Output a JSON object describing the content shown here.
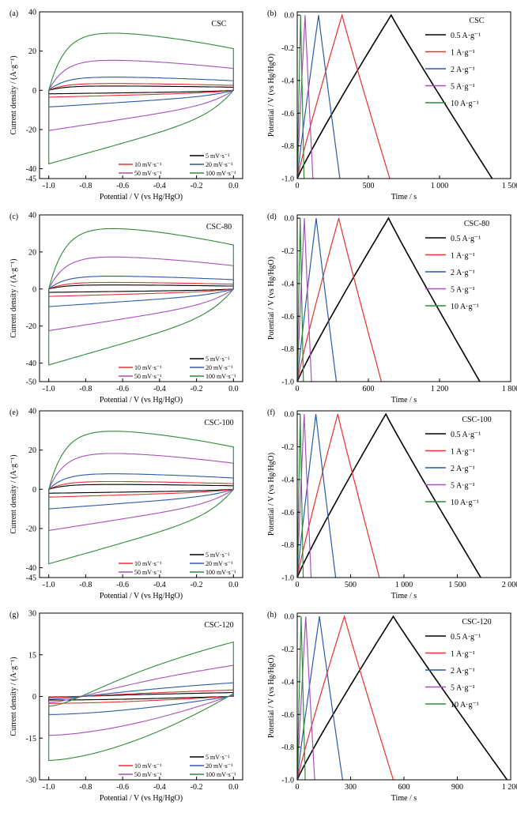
{
  "colors": {
    "black": "#000000",
    "red": "#e8312a",
    "blue": "#2a5aa8",
    "purple": "#a84fb8",
    "green": "#2e8b3a"
  },
  "common": {
    "cv_xlabel": "Potential / V (vs Hg/HgO)",
    "cv_ylabel": "Current density / (A·g⁻¹)",
    "gcd_xlabel": "Time / s",
    "gcd_ylabel": "Potential / V (vs Hg/HgO)",
    "cv_legend": [
      "5 mV·s⁻¹",
      "10 mV·s⁻¹",
      "20 mV·s⁻¹",
      "50 mV·s⁻¹",
      "100 mV·s⁻¹"
    ],
    "gcd_legend": [
      "0.5 A·g⁻¹",
      "1 A·g⁻¹",
      "2 A·g⁻¹",
      "5 A·g⁻¹",
      "10 A·g⁻¹"
    ]
  },
  "chart_data": [
    {
      "type": "line",
      "panel": "(a)",
      "title": "CSC",
      "xlabel": "Potential / V (vs Hg/HgO)",
      "ylabel": "Current density / (A·g⁻¹)",
      "xlim": [
        -1.05,
        0.05
      ],
      "ylim": [
        -45,
        40
      ],
      "xticks": [
        -1.0,
        -0.8,
        -0.6,
        -0.4,
        -0.2,
        0.0
      ],
      "xticklabels": [
        "-1.0",
        "-0.8",
        "-0.6",
        "-0.4",
        "-0.2",
        "0.0"
      ],
      "yticks": [
        -45,
        -40,
        -20,
        0,
        20,
        40
      ],
      "yticklabels": [
        "-45",
        "-40",
        "-20",
        "0",
        "20",
        "40"
      ],
      "series": [
        {
          "name": "5 mV·s⁻¹",
          "upper_peak": 2.2,
          "lower": -1.8
        },
        {
          "name": "10 mV·s⁻¹",
          "upper_peak": 3.5,
          "lower": -3.5
        },
        {
          "name": "20 mV·s⁻¹",
          "upper_peak": 6.8,
          "lower": -8.5
        },
        {
          "name": "50 mV·s⁻¹",
          "upper_peak": 15.5,
          "lower": -20.5
        },
        {
          "name": "100 mV·s⁻¹",
          "upper_peak": 29.5,
          "lower": -37.5
        }
      ]
    },
    {
      "type": "line",
      "panel": "(b)",
      "title": "CSC",
      "xlabel": "Time / s",
      "ylabel": "Potential / V (vs Hg/HgO)",
      "xlim": [
        0,
        1500
      ],
      "ylim": [
        -1.0,
        0.02
      ],
      "xticks": [
        0,
        500,
        1000,
        1500
      ],
      "xticklabels": [
        "0",
        "500",
        "1 000",
        "1 500"
      ],
      "yticks": [
        -1.0,
        -0.8,
        -0.6,
        -0.4,
        -0.2,
        0.0
      ],
      "yticklabels": [
        "-1.0",
        "-0.8",
        "-0.6",
        "-0.4",
        "-0.2",
        "0.0"
      ],
      "series": [
        {
          "name": "0.5 A·g⁻¹",
          "t_charge": 660,
          "t_end": 1370
        },
        {
          "name": "1 A·g⁻¹",
          "t_charge": 315,
          "t_end": 650
        },
        {
          "name": "2 A·g⁻¹",
          "t_charge": 150,
          "t_end": 300
        },
        {
          "name": "5 A·g⁻¹",
          "t_charge": 55,
          "t_end": 110
        },
        {
          "name": "10 A·g⁻¹",
          "t_charge": 24,
          "t_end": 48
        }
      ]
    },
    {
      "type": "line",
      "panel": "(c)",
      "title": "CSC-80",
      "xlabel": "Potential / V (vs Hg/HgO)",
      "ylabel": "Current density / (A·g⁻¹)",
      "xlim": [
        -1.05,
        0.05
      ],
      "ylim": [
        -50,
        40
      ],
      "xticks": [
        -1.0,
        -0.8,
        -0.6,
        -0.4,
        -0.2,
        0.0
      ],
      "xticklabels": [
        "-1.0",
        "-0.8",
        "-0.6",
        "-0.4",
        "-0.2",
        "0.0"
      ],
      "yticks": [
        -50,
        -40,
        -20,
        0,
        20,
        40
      ],
      "yticklabels": [
        "-50",
        "-40",
        "-20",
        "0",
        "20",
        "40"
      ],
      "series": [
        {
          "name": "5 mV·s⁻¹",
          "upper_peak": 2.2,
          "lower": -1.8
        },
        {
          "name": "10 mV·s⁻¹",
          "upper_peak": 3.6,
          "lower": -4.0
        },
        {
          "name": "20 mV·s⁻¹",
          "upper_peak": 7.0,
          "lower": -9.5
        },
        {
          "name": "50 mV·s⁻¹",
          "upper_peak": 17.5,
          "lower": -22.5
        },
        {
          "name": "100 mV·s⁻¹",
          "upper_peak": 33.0,
          "lower": -41.0
        }
      ]
    },
    {
      "type": "line",
      "panel": "(d)",
      "title": "CSC-80",
      "xlabel": "Time / s",
      "ylabel": "Potential / V (vs Hg/HgO)",
      "xlim": [
        0,
        1800
      ],
      "ylim": [
        -1.0,
        0.02
      ],
      "xticks": [
        0,
        600,
        1200,
        1800
      ],
      "xticklabels": [
        "0",
        "600",
        "1 200",
        "1 800"
      ],
      "yticks": [
        -1.0,
        -0.8,
        -0.6,
        -0.4,
        -0.2,
        0.0
      ],
      "yticklabels": [
        "-1.0",
        "-0.8",
        "-0.6",
        "-0.4",
        "-0.2",
        "0.0"
      ],
      "series": [
        {
          "name": "0.5 A·g⁻¹",
          "t_charge": 770,
          "t_end": 1540
        },
        {
          "name": "1 A·g⁻¹",
          "t_charge": 350,
          "t_end": 710
        },
        {
          "name": "2 A·g⁻¹",
          "t_charge": 160,
          "t_end": 330
        },
        {
          "name": "5 A·g⁻¹",
          "t_charge": 60,
          "t_end": 120
        },
        {
          "name": "10 A·g⁻¹",
          "t_charge": 25,
          "t_end": 52
        }
      ]
    },
    {
      "type": "line",
      "panel": "(e)",
      "title": "CSC-100",
      "xlabel": "Potential / V (vs Hg/HgO)",
      "ylabel": "Current density / (A·g⁻¹)",
      "xlim": [
        -1.05,
        0.05
      ],
      "ylim": [
        -45,
        40
      ],
      "xticks": [
        -1.0,
        -0.8,
        -0.6,
        -0.4,
        -0.2,
        0.0
      ],
      "xticklabels": [
        "-1.0",
        "-0.8",
        "-0.6",
        "-0.4",
        "-0.2",
        "0.0"
      ],
      "yticks": [
        -45,
        -40,
        -20,
        0,
        20,
        40
      ],
      "yticklabels": [
        "-45",
        "-40",
        "-20",
        "0",
        "20",
        "40"
      ],
      "series": [
        {
          "name": "5 mV·s⁻¹",
          "upper_peak": 2.5,
          "lower": -2.0
        },
        {
          "name": "10 mV·s⁻¹",
          "upper_peak": 4.0,
          "lower": -4.0
        },
        {
          "name": "20 mV·s⁻¹",
          "upper_peak": 8.0,
          "lower": -10.0
        },
        {
          "name": "50 mV·s⁻¹",
          "upper_peak": 18.5,
          "lower": -21.0
        },
        {
          "name": "100 mV·s⁻¹",
          "upper_peak": 30.0,
          "lower": -38.0
        }
      ]
    },
    {
      "type": "line",
      "panel": "(f)",
      "title": "CSC-100",
      "xlabel": "Time / s",
      "ylabel": "Potential / V (vs Hg/HgO)",
      "xlim": [
        0,
        2000
      ],
      "ylim": [
        -1.0,
        0.02
      ],
      "xticks": [
        0,
        500,
        1000,
        1500,
        2000
      ],
      "xticklabels": [
        "0",
        "500",
        "1 000",
        "1 500",
        "2 000"
      ],
      "yticks": [
        -1.0,
        -0.8,
        -0.6,
        -0.4,
        -0.2,
        0.0
      ],
      "yticklabels": [
        "-1.0",
        "-0.8",
        "-0.6",
        "-0.4",
        "-0.2",
        "0.0"
      ],
      "series": [
        {
          "name": "0.5 A·g⁻¹",
          "t_charge": 830,
          "t_end": 1720
        },
        {
          "name": "1 A·g⁻¹",
          "t_charge": 380,
          "t_end": 770
        },
        {
          "name": "2 A·g⁻¹",
          "t_charge": 175,
          "t_end": 360
        },
        {
          "name": "5 A·g⁻¹",
          "t_charge": 65,
          "t_end": 130
        },
        {
          "name": "10 A·g⁻¹",
          "t_charge": 28,
          "t_end": 56
        }
      ]
    },
    {
      "type": "line",
      "panel": "(g)",
      "title": "CSC-120",
      "xlabel": "Potential / V (vs Hg/HgO)",
      "ylabel": "Current density / (A·g⁻¹)",
      "xlim": [
        -1.05,
        0.05
      ],
      "ylim": [
        -30,
        30
      ],
      "xticks": [
        -1.0,
        -0.8,
        -0.6,
        -0.4,
        -0.2,
        0.0
      ],
      "xticklabels": [
        "-1.0",
        "-0.8",
        "-0.6",
        "-0.4",
        "-0.2",
        "0.0"
      ],
      "yticks": [
        -30,
        -15,
        0,
        15,
        30
      ],
      "yticklabels": [
        "-30",
        "-15",
        "0",
        "15",
        "30"
      ],
      "series": [
        {
          "name": "5 mV·s⁻¹",
          "upper_peak": 1.5,
          "lower": -1.3
        },
        {
          "name": "10 mV·s⁻¹",
          "upper_peak": 2.5,
          "lower": -2.5
        },
        {
          "name": "20 mV·s⁻¹",
          "upper_peak": 5.3,
          "lower": -6.5
        },
        {
          "name": "50 mV·s⁻¹",
          "upper_peak": 12.0,
          "lower": -14.0
        },
        {
          "name": "100 mV·s⁻¹",
          "upper_peak": 21.0,
          "lower": -23.0
        }
      ]
    },
    {
      "type": "line",
      "panel": "(h)",
      "title": "CSC-120",
      "xlabel": "Time / s",
      "ylabel": "Potential / V (vs Hg/HgO)",
      "xlim": [
        0,
        1200
      ],
      "ylim": [
        -1.0,
        0.02
      ],
      "xticks": [
        0,
        300,
        600,
        900,
        1200
      ],
      "xticklabels": [
        "0",
        "300",
        "600",
        "900",
        "1 200"
      ],
      "yticks": [
        -1.0,
        -0.8,
        -0.6,
        -0.4,
        -0.2,
        0.0
      ],
      "yticklabels": [
        "-1.0",
        "-0.8",
        "-0.6",
        "-0.4",
        "-0.2",
        "0.0"
      ],
      "series": [
        {
          "name": "0.5 A·g⁻¹",
          "t_charge": 540,
          "t_end": 1180
        },
        {
          "name": "1 A·g⁻¹",
          "t_charge": 265,
          "t_end": 540
        },
        {
          "name": "2 A·g⁻¹",
          "t_charge": 125,
          "t_end": 255
        },
        {
          "name": "5 A·g⁻¹",
          "t_charge": 48,
          "t_end": 98
        },
        {
          "name": "10 A·g⁻¹",
          "t_charge": 22,
          "t_end": 45
        }
      ]
    }
  ]
}
